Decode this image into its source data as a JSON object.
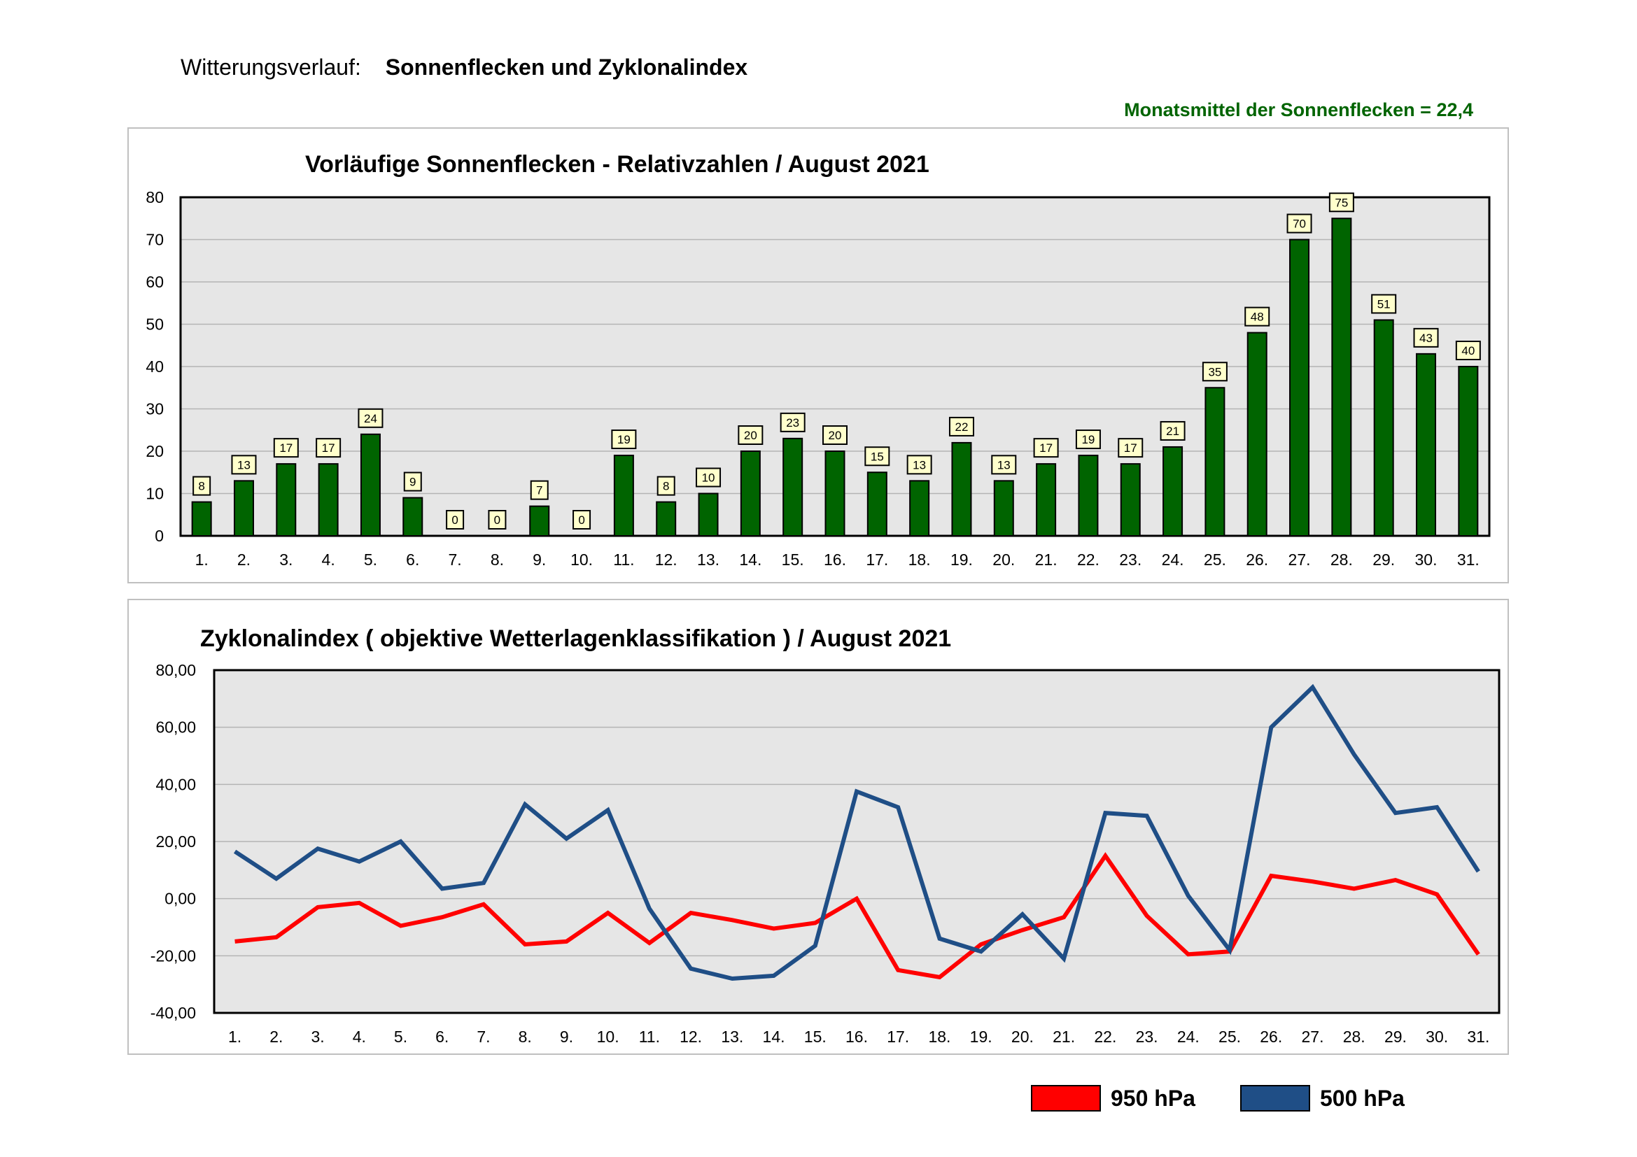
{
  "header": {
    "label": "Witterungsverlauf:",
    "title": "Sonnenflecken und Zyklonalindex"
  },
  "monthly_mean": "Monatsmittel der Sonnenflecken = 22,4",
  "colors": {
    "bar": "#006400",
    "plot_bg": "#e6e6e6",
    "grid": "#b4b4b4",
    "line950": "#ff0000",
    "line500": "#1f4e86",
    "label_bg": "#ffffcc",
    "mean_text": "#006400"
  },
  "legend": [
    {
      "label": "950 hPa",
      "color": "#ff0000"
    },
    {
      "label": "500 hPa",
      "color": "#1f4e86"
    }
  ],
  "chart_data": [
    {
      "type": "bar",
      "title": "Vorläufige Sonnenflecken - Relativzahlen  /   August 2021",
      "categories": [
        "1.",
        "2.",
        "3.",
        "4.",
        "5.",
        "6.",
        "7.",
        "8.",
        "9.",
        "10.",
        "11.",
        "12.",
        "13.",
        "14.",
        "15.",
        "16.",
        "17.",
        "18.",
        "19.",
        "20.",
        "21.",
        "22.",
        "23.",
        "24.",
        "25.",
        "26.",
        "27.",
        "28.",
        "29.",
        "30.",
        "31."
      ],
      "values": [
        8,
        13,
        17,
        17,
        24,
        9,
        0,
        0,
        7,
        0,
        19,
        8,
        10,
        20,
        23,
        20,
        15,
        13,
        22,
        13,
        17,
        19,
        17,
        21,
        35,
        48,
        70,
        75,
        51,
        43,
        40
      ],
      "yticks": [
        "0",
        "10",
        "20",
        "30",
        "40",
        "50",
        "60",
        "70",
        "80"
      ],
      "ylim": [
        0,
        80
      ],
      "xlabel": "",
      "ylabel": ""
    },
    {
      "type": "line",
      "title": "Zyklonalindex  ( objektive Wetterlagenklassifikation )  /  August 2021",
      "categories": [
        "1.",
        "2.",
        "3.",
        "4.",
        "5.",
        "6.",
        "7.",
        "8.",
        "9.",
        "10.",
        "11.",
        "12.",
        "13.",
        "14.",
        "15.",
        "16.",
        "17.",
        "18.",
        "19.",
        "20.",
        "21.",
        "22.",
        "23.",
        "24.",
        "25.",
        "26.",
        "27.",
        "28.",
        "29.",
        "30.",
        "31."
      ],
      "series": [
        {
          "name": "950 hPa",
          "values": [
            -15,
            -13.5,
            -3,
            -1.5,
            -9.5,
            -6.5,
            -2,
            -16,
            -15,
            -5,
            -15.5,
            -5,
            -7.5,
            -10.5,
            -8.5,
            0,
            -25,
            -27.5,
            -16,
            -11,
            -6.5,
            15,
            -6,
            -19.5,
            -18.5,
            8,
            6,
            3.5,
            6.5,
            1.5,
            -19.5
          ]
        },
        {
          "name": "500 hPa",
          "values": [
            16.5,
            7,
            17.5,
            13,
            20,
            3.5,
            5.5,
            33,
            21,
            31,
            -3.5,
            -24.5,
            -28,
            -27,
            -16.5,
            37.5,
            32,
            -14,
            -18.5,
            -5.5,
            -21,
            30,
            29,
            1,
            -18,
            60,
            74,
            50.5,
            30,
            32,
            9.5
          ]
        }
      ],
      "yticks": [
        "-40,00",
        "-20,00",
        "0,00",
        "20,00",
        "40,00",
        "60,00",
        "80,00"
      ],
      "ylim": [
        -40,
        80
      ],
      "xlabel": "",
      "ylabel": ""
    }
  ]
}
